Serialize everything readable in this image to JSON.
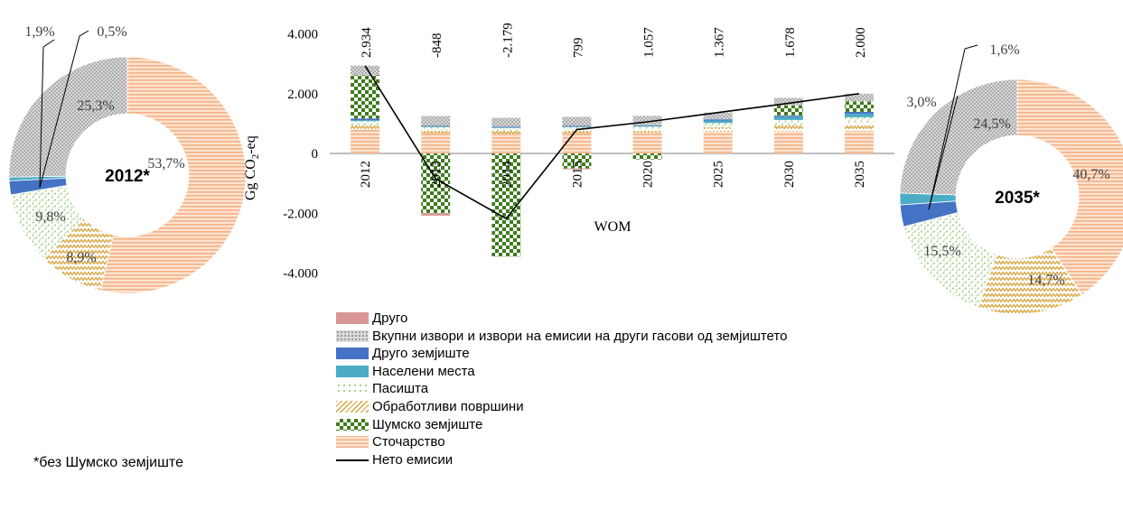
{
  "colors": {
    "drugo": "#d99694",
    "vkupni": "#a6a6a6",
    "drugo_zemjiste": "#4472c4",
    "naseleni": "#4bacc6",
    "pasista": "#c3e6b4",
    "obrabotlivi": "#d6ac4a",
    "sumsko": "#3e7c1e",
    "stocarstvo": "#f8cbad",
    "neto": "#000000"
  },
  "legend": [
    {
      "key": "drugo",
      "label": "Друго",
      "pattern": "solid"
    },
    {
      "key": "vkupni",
      "label": "Вкупни извори и извори на емисии на други гасови од земјиштето",
      "pattern": "dots"
    },
    {
      "key": "drugo_zemjiste",
      "label": "Друго земјиште",
      "pattern": "solid"
    },
    {
      "key": "naseleni",
      "label": "Населени места",
      "pattern": "solid"
    },
    {
      "key": "pasista",
      "label": "Пасишта",
      "pattern": "sprinkle"
    },
    {
      "key": "obrabotlivi",
      "label": "Обработливи површини",
      "pattern": "zigzag"
    },
    {
      "key": "sumsko",
      "label": "Шумско земјиште",
      "pattern": "checker"
    },
    {
      "key": "stocarstvo",
      "label": "Сточарство",
      "pattern": "hstripes"
    },
    {
      "key": "neto",
      "label": "Нето емисии",
      "pattern": "line"
    }
  ],
  "footnote": "*без Шумско земјиште",
  "chart_data": [
    {
      "type": "pie",
      "center_label": "2012*",
      "slices": [
        {
          "key": "stocarstvo",
          "value": 53.7,
          "label": "53,7%"
        },
        {
          "key": "obrabotlivi",
          "value": 8.9,
          "label": "8,9%"
        },
        {
          "key": "pasista",
          "value": 9.8,
          "label": "9,8%"
        },
        {
          "key": "drugo_zemjiste",
          "value": 1.9,
          "label": "1,9%"
        },
        {
          "key": "naseleni",
          "value": 0.5,
          "label": "0,5%"
        },
        {
          "key": "vkupni",
          "value": 25.3,
          "label": "25,3%"
        }
      ]
    },
    {
      "type": "bar",
      "stacked": true,
      "categories": [
        "2012",
        "2013",
        "2014",
        "2015",
        "2020",
        "2025",
        "2030",
        "2035"
      ],
      "ylabel": "Gg CO2-eq",
      "xlabel": "WOM",
      "ylim": [
        -4000,
        4000
      ],
      "yticks": [
        "-4.000",
        "-2.000",
        "0",
        "2.000",
        "4.000"
      ],
      "ytick_values": [
        -4000,
        -2000,
        0,
        2000,
        4000
      ],
      "series": [
        {
          "key": "stocarstvo",
          "values": [
            800,
            680,
            650,
            680,
            700,
            720,
            740,
            760
          ]
        },
        {
          "key": "obrabotlivi",
          "values": [
            130,
            100,
            100,
            100,
            100,
            150,
            200,
            250
          ]
        },
        {
          "key": "pasista",
          "values": [
            150,
            100,
            100,
            100,
            100,
            150,
            180,
            200
          ]
        },
        {
          "key": "naseleni",
          "values": [
            30,
            20,
            20,
            20,
            20,
            80,
            100,
            120
          ]
        },
        {
          "key": "drugo_zemjiste",
          "values": [
            60,
            20,
            20,
            20,
            20,
            40,
            40,
            60
          ]
        },
        {
          "key": "sumsko",
          "values": [
            1450,
            -2000,
            -3450,
            -500,
            -200,
            0,
            350,
            350
          ]
        },
        {
          "key": "vkupni",
          "values": [
            314,
            332,
            300,
            307,
            317,
            227,
            248,
            260
          ]
        },
        {
          "key": "drugo",
          "values": [
            0,
            -80,
            0,
            -28,
            0,
            0,
            0,
            0
          ]
        }
      ],
      "net": {
        "key": "neto",
        "values": [
          2934,
          -848,
          -2179,
          799,
          1057,
          1367,
          1678,
          2000
        ],
        "labels": [
          "2.934",
          "-848",
          "-2.179",
          "799",
          "1.057",
          "1.367",
          "1.678",
          "2.000"
        ]
      }
    },
    {
      "type": "pie",
      "center_label": "2035*",
      "slices": [
        {
          "key": "stocarstvo",
          "value": 40.7,
          "label": "40,7%"
        },
        {
          "key": "obrabotlivi",
          "value": 14.7,
          "label": "14,7%"
        },
        {
          "key": "pasista",
          "value": 15.5,
          "label": "15,5%"
        },
        {
          "key": "drugo_zemjiste",
          "value": 3.0,
          "label": "3,0%"
        },
        {
          "key": "naseleni",
          "value": 1.6,
          "label": "1,6%"
        },
        {
          "key": "vkupni",
          "value": 24.5,
          "label": "24,5%"
        }
      ]
    }
  ]
}
